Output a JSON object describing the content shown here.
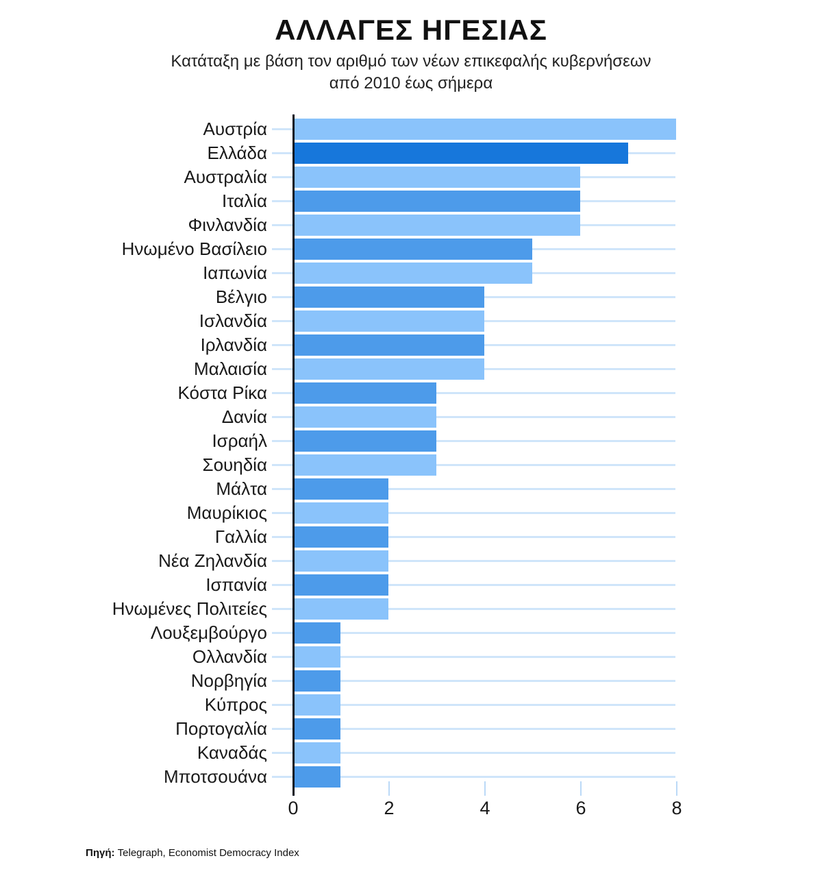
{
  "chart_data": {
    "type": "bar",
    "orientation": "horizontal",
    "title": "ΑΛΛΑΓΕΣ ΗΓΕΣΙΑΣ",
    "subtitle_line1": "Κατάταξη με βάση τον αριθμό των νέων επικεφαλής κυβερνήσεων",
    "subtitle_line2": "από 2010 έως σήμερα",
    "categories": [
      "Αυστρία",
      "Ελλάδα",
      "Αυστραλία",
      "Ιταλία",
      "Φινλανδία",
      "Ηνωμένο Βασίλειο",
      "Ιαπωνία",
      "Βέλγιο",
      "Ισλανδία",
      "Ιρλανδία",
      "Μαλαισία",
      "Κόστα Ρίκα",
      "Δανία",
      "Ισραήλ",
      "Σουηδία",
      "Μάλτα",
      "Μαυρίκιος",
      "Γαλλία",
      "Νέα Ζηλανδία",
      "Ισπανία",
      "Ηνωμένες Πολιτείες",
      "Λουξεμβούργο",
      "Ολλανδία",
      "Νορβηγία",
      "Κύπρος",
      "Πορτογαλία",
      "Καναδάς",
      "Μποτσουάνα"
    ],
    "values": [
      8,
      7,
      6,
      6,
      6,
      5,
      5,
      4,
      4,
      4,
      4,
      3,
      3,
      3,
      3,
      2,
      2,
      2,
      2,
      2,
      2,
      1,
      1,
      1,
      1,
      1,
      1,
      1
    ],
    "tones": [
      "light",
      "highlight",
      "light",
      "medium",
      "light",
      "medium",
      "light",
      "medium",
      "light",
      "medium",
      "light",
      "medium",
      "light",
      "medium",
      "light",
      "medium",
      "light",
      "medium",
      "light",
      "medium",
      "light",
      "medium",
      "light",
      "medium",
      "light",
      "medium",
      "light",
      "medium"
    ],
    "highlight_category": "Ελλάδα",
    "xlim": [
      0,
      8
    ],
    "xticks": [
      0,
      2,
      4,
      6,
      8
    ],
    "grid": "horizontal row leader lines, no vertical gridlines",
    "legend": "none",
    "source_label": "Πηγή:",
    "source_text": " Telegraph, Economist Democracy Index",
    "colors": {
      "bar_light": "#8AC3FB",
      "bar_medium": "#4D9BEA",
      "bar_highlight": "#1777DB",
      "gridline": "#CFE5FA",
      "tick": "#BBD9F7",
      "axis_line": "#0A0F1E",
      "text": "#1A1A1A",
      "background": "#FFFFFF"
    }
  }
}
